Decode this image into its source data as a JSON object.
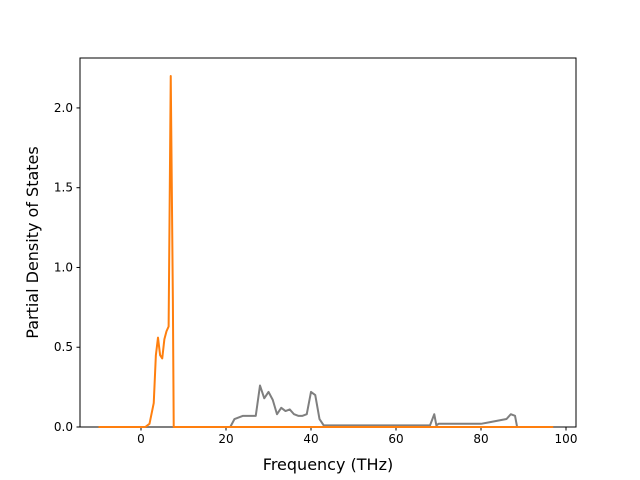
{
  "chart_data": {
    "type": "line",
    "xlabel": "Frequency (THz)",
    "ylabel": "Partial Density of States",
    "xlim": [
      -14.35,
      102.35
    ],
    "ylim": [
      0,
      2.313
    ],
    "xticks": [
      0,
      20,
      40,
      60,
      80,
      100
    ],
    "yticks": [
      {
        "value": 0,
        "label": "0.0"
      },
      {
        "value": 0.5,
        "label": "0.5"
      },
      {
        "value": 1,
        "label": "1.0"
      },
      {
        "value": 1.5,
        "label": "1.5"
      },
      {
        "value": 2,
        "label": "2.0"
      }
    ],
    "series": [
      {
        "color": "#7f7f7f",
        "x": [
          -10,
          21,
          22,
          23,
          24,
          27,
          28,
          29,
          30,
          31,
          32,
          33,
          34,
          35,
          36,
          37,
          38,
          39,
          40,
          41,
          42,
          43,
          68,
          69,
          69.5,
          70,
          80,
          82,
          86,
          87,
          88,
          88.5,
          97
        ],
        "values": [
          0,
          0,
          0.05,
          0.06,
          0.07,
          0.07,
          0.26,
          0.18,
          0.22,
          0.17,
          0.08,
          0.12,
          0.1,
          0.11,
          0.08,
          0.07,
          0.07,
          0.08,
          0.22,
          0.2,
          0.05,
          0.01,
          0.01,
          0.08,
          0.01,
          0.02,
          0.02,
          0.03,
          0.05,
          0.08,
          0.07,
          0,
          0
        ]
      },
      {
        "color": "#ff7f0e",
        "x": [
          -10,
          1,
          2,
          3,
          3.5,
          4,
          4.5,
          5,
          5.5,
          6,
          6.5,
          7,
          7.5,
          7.7,
          97
        ],
        "values": [
          0,
          0,
          0.02,
          0.15,
          0.45,
          0.56,
          0.45,
          0.43,
          0.55,
          0.6,
          0.63,
          2.2,
          0.8,
          0,
          0
        ]
      }
    ]
  }
}
